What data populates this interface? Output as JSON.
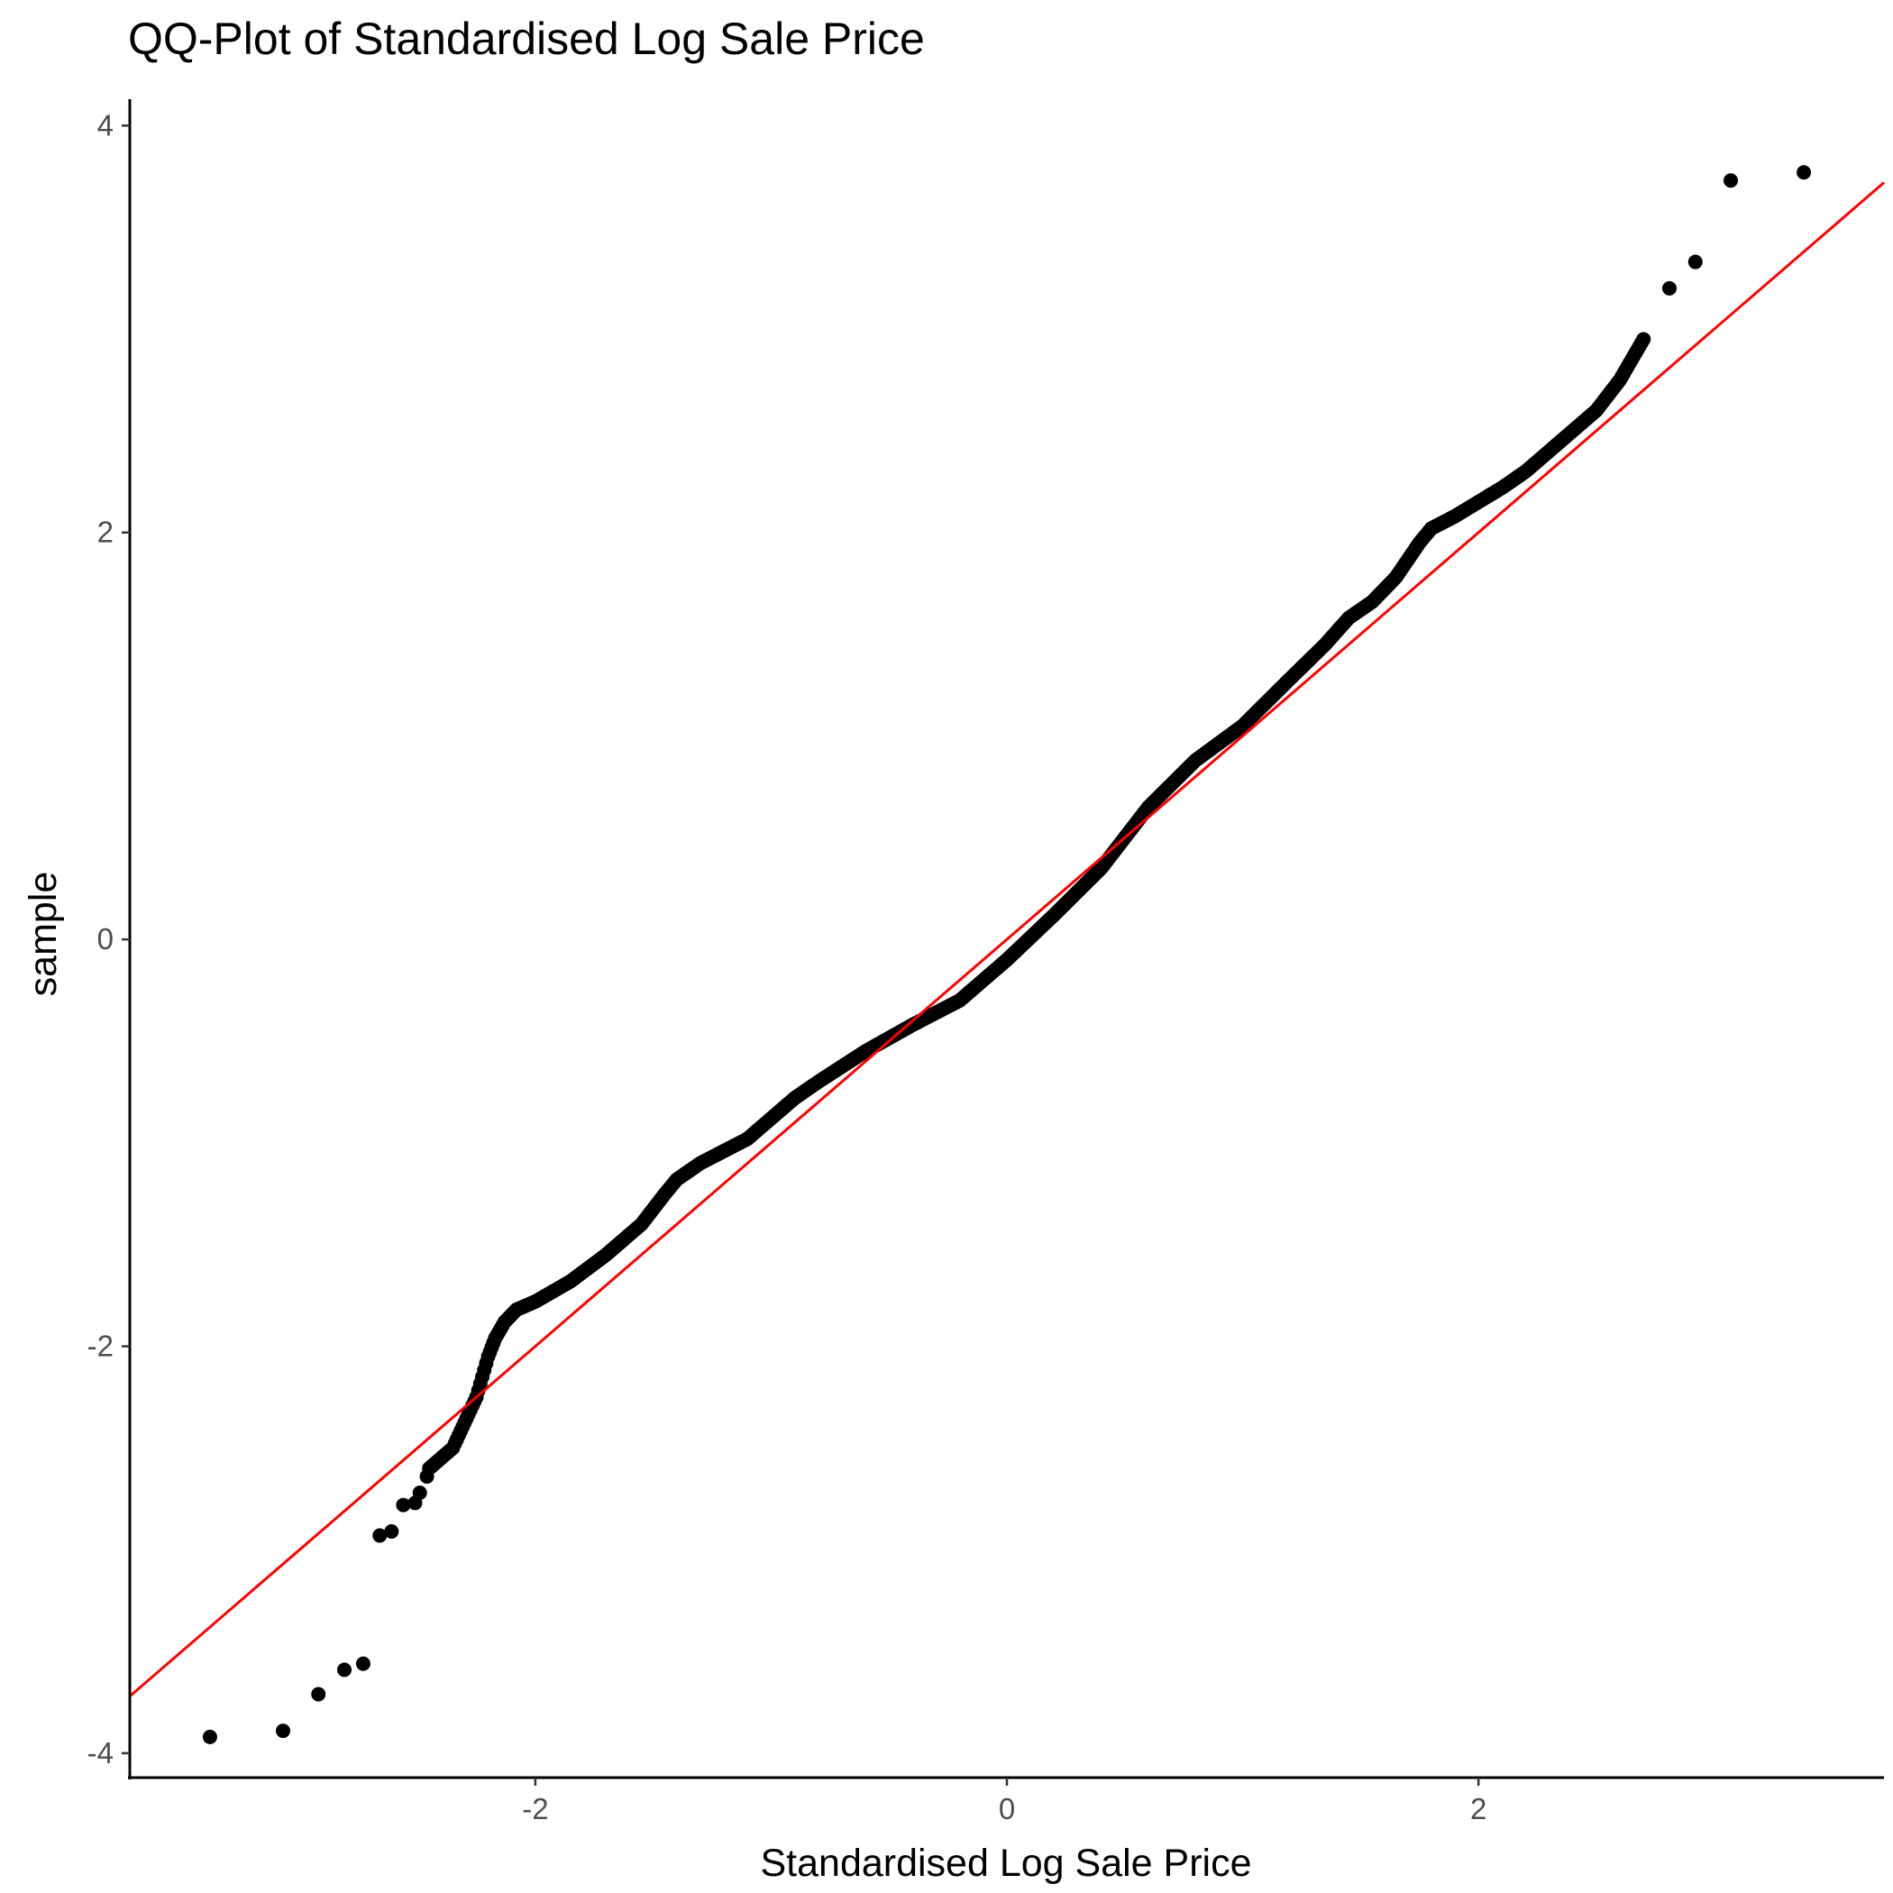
{
  "chart_data": {
    "type": "scatter",
    "title": "QQ-Plot of Standardised Log Sale Price",
    "xlabel": "Standardised Log Sale Price",
    "ylabel": "sample",
    "xlim": [
      -3.72,
      3.72
    ],
    "ylim": [
      -4.12,
      4.13
    ],
    "x_ticks": [
      -2,
      0,
      2
    ],
    "x_tick_labels": [
      "-2",
      "0",
      "2"
    ],
    "y_ticks": [
      -4,
      -2,
      0,
      2,
      4
    ],
    "y_tick_labels": [
      "-4",
      "-2",
      "0",
      "2",
      "4"
    ],
    "grid": false,
    "point_color": "#000000",
    "line_color": "#ff0000",
    "reference_line": {
      "intercept": 0.0,
      "slope": 1.0
    },
    "outliers_low": {
      "x": [
        -3.38,
        -3.07,
        -2.92,
        -2.81,
        -2.73,
        -2.66,
        -2.61,
        -2.56,
        -2.51,
        -2.49,
        -2.46
      ],
      "y": [
        -3.92,
        -3.89,
        -3.71,
        -3.59,
        -3.56,
        -2.93,
        -2.91,
        -2.78,
        -2.77,
        -2.72,
        -2.64
      ]
    },
    "outliers_high": {
      "x": [
        2.81,
        2.92,
        3.07,
        3.38
      ],
      "y": [
        3.2,
        3.33,
        3.73,
        3.77
      ]
    },
    "quantile_curve": {
      "x": [
        -2.45,
        -2.35,
        -2.25,
        -2.2,
        -2.17,
        -2.13,
        -2.08,
        -2.0,
        -1.85,
        -1.7,
        -1.55,
        -1.45,
        -1.4,
        -1.3,
        -1.1,
        -1.0,
        -0.9,
        -0.8,
        -0.6,
        -0.4,
        -0.2,
        0.0,
        0.2,
        0.4,
        0.6,
        0.8,
        1.0,
        1.2,
        1.35,
        1.45,
        1.55,
        1.65,
        1.75,
        1.8,
        1.9,
        2.0,
        2.1,
        2.2,
        2.3,
        2.4,
        2.5,
        2.6,
        2.7
      ],
      "y": [
        -2.6,
        -2.5,
        -2.25,
        -2.05,
        -1.96,
        -1.88,
        -1.82,
        -1.78,
        -1.68,
        -1.55,
        -1.4,
        -1.25,
        -1.18,
        -1.1,
        -0.98,
        -0.88,
        -0.78,
        -0.7,
        -0.55,
        -0.42,
        -0.3,
        -0.1,
        0.12,
        0.35,
        0.65,
        0.88,
        1.05,
        1.28,
        1.45,
        1.58,
        1.66,
        1.78,
        1.95,
        2.02,
        2.08,
        2.15,
        2.22,
        2.3,
        2.4,
        2.5,
        2.6,
        2.75,
        2.95
      ]
    }
  }
}
